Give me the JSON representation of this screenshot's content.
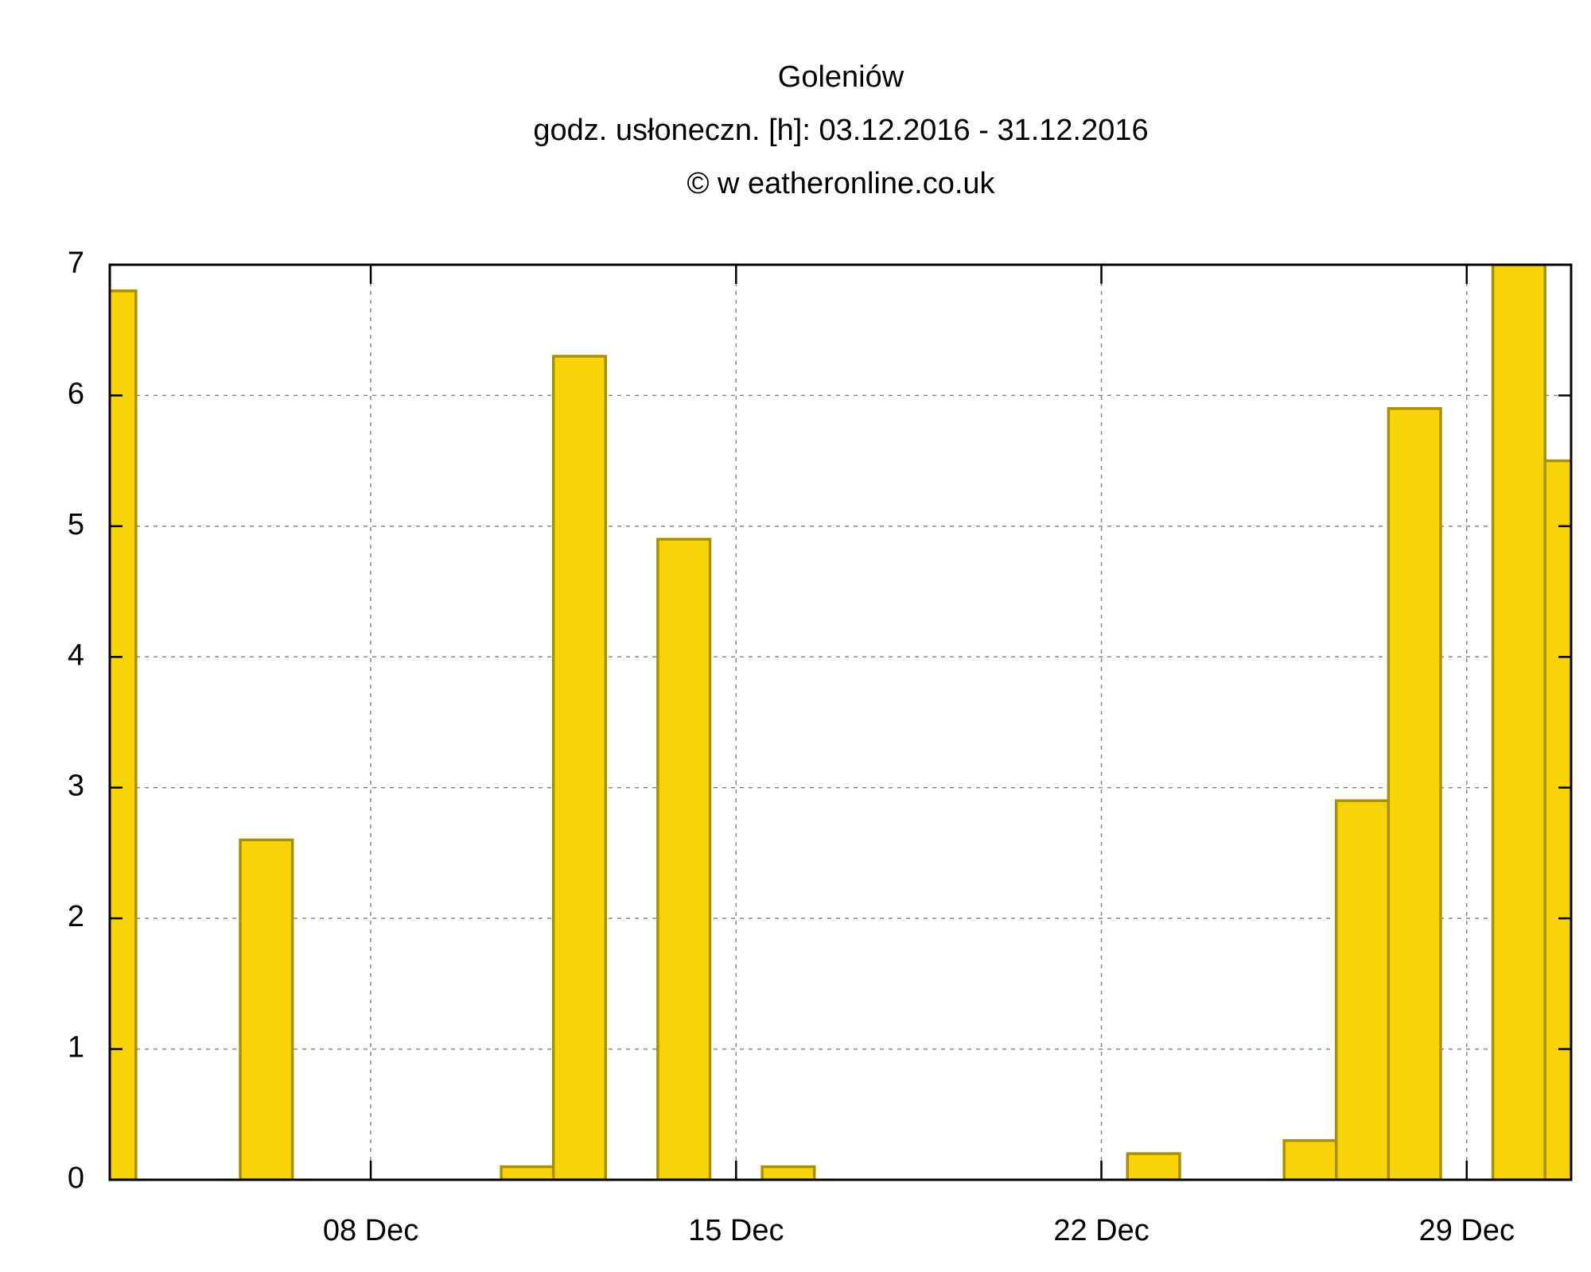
{
  "chart_data": {
    "type": "bar",
    "title": "Goleniów",
    "subtitle": "godz. usłoneczn. [h]: 03.12.2016 - 31.12.2016",
    "annotation": "© w eatheronline.co.uk",
    "x": [
      3,
      4,
      5,
      6,
      7,
      8,
      9,
      10,
      11,
      12,
      13,
      14,
      15,
      16,
      17,
      18,
      19,
      20,
      21,
      22,
      23,
      24,
      25,
      26,
      27,
      28,
      29,
      30,
      31
    ],
    "values": [
      6.8,
      0,
      0,
      2.6,
      0,
      0,
      0,
      0,
      0.1,
      6.3,
      0,
      4.9,
      0,
      0.1,
      0,
      0,
      0,
      0,
      0,
      0,
      0.2,
      0,
      0,
      0.3,
      2.9,
      5.9,
      0,
      7,
      5.5
    ],
    "color": "#f7d307",
    "edge_color": "#a89000",
    "xlim": [
      3,
      31
    ],
    "xticks": [
      {
        "value": 8,
        "label": "08 Dec"
      },
      {
        "value": 15,
        "label": "15 Dec"
      },
      {
        "value": 22,
        "label": "22 Dec"
      },
      {
        "value": 29,
        "label": "29 Dec"
      }
    ],
    "ylim": [
      0,
      7
    ],
    "yticks": [
      0,
      1,
      2,
      3,
      4,
      5,
      6,
      7
    ],
    "grid": true
  }
}
